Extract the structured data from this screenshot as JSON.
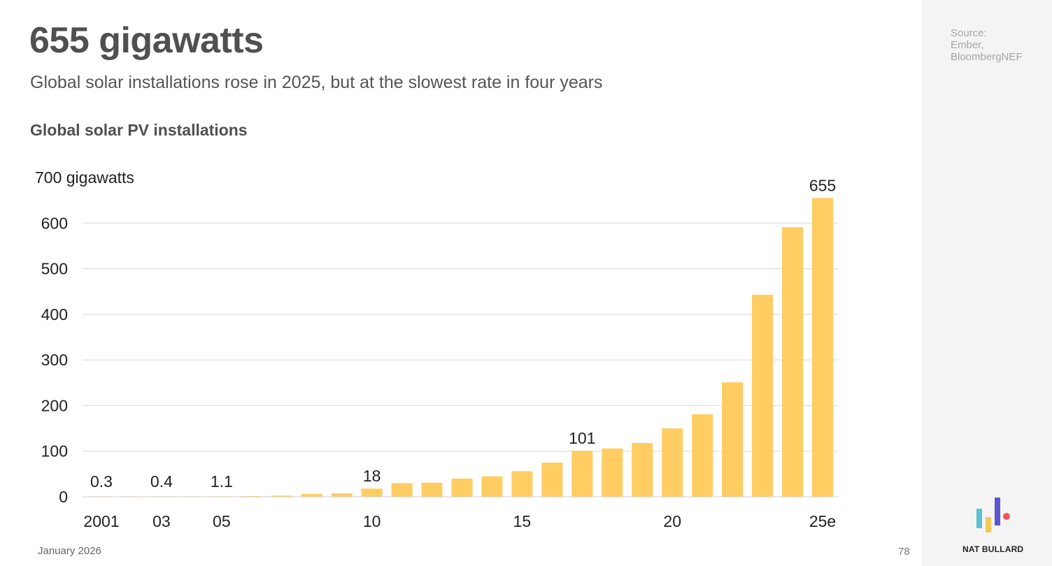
{
  "header": {
    "title": "655 gigawatts",
    "subtitle": "Global solar installations rose in 2025, but at the slowest rate in four years"
  },
  "footer": {
    "date": "January 2026",
    "page": "78"
  },
  "sidebar": {
    "source_lines": [
      "Source:",
      "Ember,",
      "BloombergNEF"
    ],
    "brand": "NAT BULLARD",
    "logo_colors": [
      "#5bc3d3",
      "#f7c75a",
      "#5a56d1",
      "#f0565a"
    ]
  },
  "chart_data": {
    "type": "bar",
    "title": "Global solar PV installations",
    "ylabel": "700 gigawatts",
    "ylim": [
      0,
      700
    ],
    "yticks": [
      {
        "value": 600,
        "label": "600"
      },
      {
        "value": 500,
        "label": "500"
      },
      {
        "value": 400,
        "label": "400"
      },
      {
        "value": 300,
        "label": "300"
      },
      {
        "value": 200,
        "label": "200"
      },
      {
        "value": 100,
        "label": "100"
      },
      {
        "value": 0,
        "label": "0"
      }
    ],
    "categories": [
      "2001",
      "2002",
      "2003",
      "2004",
      "2005",
      "2006",
      "2007",
      "2008",
      "2009",
      "2010",
      "2011",
      "2012",
      "2013",
      "2014",
      "2015",
      "2016",
      "2017",
      "2018",
      "2019",
      "2020",
      "2021",
      "2022",
      "2023",
      "2024",
      "2025e"
    ],
    "values": [
      0.3,
      0.3,
      0.4,
      0.8,
      1.1,
      1.6,
      2.5,
      6.5,
      7.5,
      18,
      30,
      31,
      40,
      45,
      56,
      75,
      101,
      106,
      118,
      150,
      181,
      251,
      443,
      591,
      655
    ],
    "xtick_labels": [
      {
        "index": 0,
        "label": "2001"
      },
      {
        "index": 2,
        "label": "03"
      },
      {
        "index": 4,
        "label": "05"
      },
      {
        "index": 9,
        "label": "10"
      },
      {
        "index": 14,
        "label": "15"
      },
      {
        "index": 19,
        "label": "20"
      },
      {
        "index": 24,
        "label": "25e"
      }
    ],
    "data_labels": [
      {
        "index": 0,
        "label": "0.3"
      },
      {
        "index": 2,
        "label": "0.4"
      },
      {
        "index": 4,
        "label": "1.1"
      },
      {
        "index": 9,
        "label": "18"
      },
      {
        "index": 16,
        "label": "101"
      },
      {
        "index": 24,
        "label": "655"
      }
    ],
    "bar_color": "#ffcd62",
    "grid": true
  }
}
